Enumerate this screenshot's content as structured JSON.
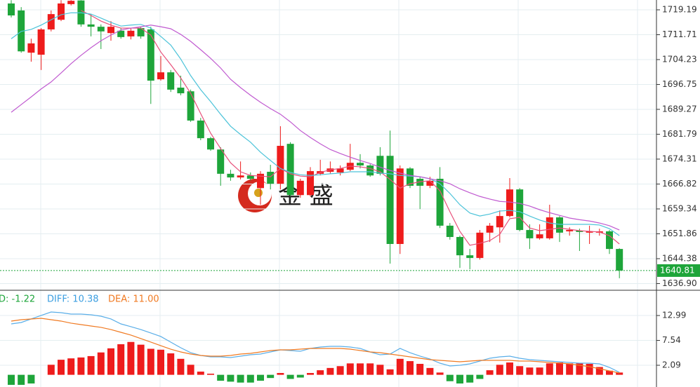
{
  "chart_data": [
    {
      "type": "candlestick",
      "open": [
        1721.1,
        1719.0,
        1706.3,
        1705.7,
        1713.3,
        1716.2,
        1720.9,
        1722.0,
        1714.8,
        1714.1,
        1712.2,
        1712.9,
        1711.2,
        1713.7,
        1713.3,
        1698.3,
        1700.4,
        1695.8,
        1694.7,
        1685.9,
        1680.6,
        1677.2,
        1669.9,
        1668.8,
        1669.4,
        1665.6,
        1670.5,
        1666.9,
        1678.9,
        1663.5,
        1663.5,
        1669.9,
        1670.5,
        1670.3,
        1671.1,
        1673.2,
        1672.4,
        1675.3,
        1675.3,
        1648.8,
        1671.5,
        1668.4,
        1666.3,
        1668.4,
        1654.3,
        1650.9,
        1645.4,
        1644.6,
        1652.2,
        1653.8,
        1657.2,
        1665.2,
        1653.0,
        1650.5,
        1650.5,
        1656.8,
        1652.6,
        1652.8,
        1652.2,
        1652.2,
        1652.6,
        1647.3
      ],
      "high": [
        1722.1,
        1720.0,
        1710.5,
        1713.7,
        1719.0,
        1722.1,
        1722.1,
        1722.1,
        1717.9,
        1714.8,
        1715.8,
        1713.7,
        1713.7,
        1714.1,
        1714.1,
        1705.3,
        1701.1,
        1699.4,
        1695.2,
        1686.7,
        1681.0,
        1677.9,
        1671.1,
        1673.6,
        1670.3,
        1670.7,
        1672.6,
        1684.2,
        1679.4,
        1668.4,
        1671.9,
        1674.1,
        1673.6,
        1672.4,
        1678.9,
        1675.8,
        1672.8,
        1677.9,
        1682.9,
        1672.4,
        1671.9,
        1669.0,
        1669.0,
        1671.9,
        1655.1,
        1651.3,
        1647.3,
        1653.0,
        1655.1,
        1658.9,
        1668.6,
        1665.6,
        1654.7,
        1654.7,
        1660.6,
        1657.2,
        1653.8,
        1653.4,
        1654.3,
        1653.4,
        1653.0,
        1647.5
      ],
      "low": [
        1716.9,
        1706.3,
        1703.6,
        1701.1,
        1712.7,
        1715.8,
        1720.5,
        1714.1,
        1711.2,
        1707.4,
        1709.9,
        1710.5,
        1710.3,
        1710.5,
        1690.9,
        1697.9,
        1694.5,
        1693.5,
        1685.5,
        1680.0,
        1676.8,
        1666.3,
        1667.8,
        1668.2,
        1667.9,
        1660.6,
        1665.2,
        1665.2,
        1663.1,
        1662.7,
        1663.1,
        1669.4,
        1669.9,
        1669.4,
        1670.7,
        1671.5,
        1669.0,
        1669.4,
        1642.9,
        1645.8,
        1665.6,
        1659.3,
        1665.6,
        1653.6,
        1650.1,
        1641.6,
        1641.2,
        1644.1,
        1649.4,
        1649.2,
        1656.8,
        1652.6,
        1647.3,
        1650.1,
        1650.1,
        1649.4,
        1651.3,
        1646.7,
        1648.8,
        1651.3,
        1645.8,
        1638.5
      ],
      "close": [
        1717.5,
        1706.7,
        1709.1,
        1713.3,
        1717.9,
        1721.1,
        1721.9,
        1714.8,
        1714.1,
        1712.7,
        1714.1,
        1711.0,
        1712.9,
        1711.2,
        1697.9,
        1700.4,
        1695.2,
        1694.1,
        1685.9,
        1680.6,
        1677.2,
        1669.9,
        1668.8,
        1669.4,
        1668.4,
        1669.9,
        1666.9,
        1678.3,
        1663.5,
        1667.8,
        1670.7,
        1670.7,
        1671.5,
        1671.5,
        1673.2,
        1672.4,
        1669.4,
        1669.9,
        1648.8,
        1671.5,
        1666.3,
        1666.3,
        1667.8,
        1654.3,
        1650.9,
        1645.4,
        1644.6,
        1652.2,
        1654.3,
        1657.2,
        1665.2,
        1653.0,
        1650.5,
        1651.7,
        1656.8,
        1652.2,
        1653.0,
        1652.4,
        1652.6,
        1652.6,
        1647.3,
        1640.81
      ],
      "up_color": "#ee1c1c",
      "down_color": "#1ea53a",
      "series": [
        {
          "color": "#e8507a",
          "values": [
            null,
            null,
            null,
            null,
            null,
            null,
            null,
            1719.0,
            1717.5,
            1715.8,
            1714.6,
            1713.7,
            1713.7,
            1713.7,
            1711.6,
            1706.5,
            1702.7,
            1698.7,
            1694.1,
            1688.0,
            1682.1,
            1677.5,
            1673.2,
            1670.5,
            1669.4,
            1669.2,
            1669.0,
            1671.5,
            1669.9,
            1669.2,
            1669.0,
            1670.3,
            1671.1,
            1671.5,
            1672.2,
            1672.0,
            1671.5,
            1670.5,
            1668.2,
            1665.6,
            1666.9,
            1667.5,
            1667.8,
            1664.8,
            1658.5,
            1652.6,
            1648.4,
            1649.0,
            1649.8,
            1651.7,
            1656.4,
            1656.8,
            1653.6,
            1652.8,
            1653.2,
            1653.6,
            1653.2,
            1652.8,
            1652.6,
            1652.4,
            1651.3,
            1648.8
          ]
        },
        {
          "color": "#4cc3d9",
          "values": [
            1710.5,
            1712.7,
            1713.3,
            1714.6,
            1716.2,
            1717.7,
            1718.3,
            1718.3,
            1717.9,
            1716.7,
            1715.4,
            1714.3,
            1714.6,
            1714.8,
            1713.7,
            1711.2,
            1708.6,
            1704.4,
            1699.4,
            1695.2,
            1691.6,
            1687.8,
            1684.2,
            1681.7,
            1679.4,
            1676.4,
            1673.9,
            1671.5,
            1670.3,
            1669.6,
            1669.4,
            1669.6,
            1669.9,
            1670.1,
            1670.5,
            1670.5,
            1670.5,
            1670.1,
            1669.9,
            1669.4,
            1669.2,
            1669.0,
            1668.4,
            1666.9,
            1664.0,
            1660.6,
            1658.1,
            1657.2,
            1657.8,
            1658.7,
            1658.9,
            1658.5,
            1657.2,
            1656.0,
            1655.1,
            1654.7,
            1654.7,
            1654.7,
            1654.7,
            1654.5,
            1653.4,
            1651.3
          ]
        },
        {
          "color": "#c05ad0",
          "values": [
            1688.4,
            1690.7,
            1693.0,
            1695.4,
            1697.5,
            1700.2,
            1703.0,
            1705.5,
            1707.8,
            1709.9,
            1711.6,
            1713.1,
            1713.7,
            1714.1,
            1714.6,
            1714.1,
            1713.5,
            1711.8,
            1709.7,
            1707.2,
            1704.6,
            1701.7,
            1698.3,
            1695.8,
            1693.5,
            1691.4,
            1689.5,
            1687.8,
            1685.5,
            1682.9,
            1680.8,
            1678.9,
            1677.2,
            1676.0,
            1674.9,
            1673.9,
            1673.0,
            1671.9,
            1670.9,
            1670.1,
            1669.4,
            1669.0,
            1668.4,
            1667.8,
            1666.9,
            1665.4,
            1664.2,
            1663.1,
            1662.3,
            1661.6,
            1661.4,
            1661.0,
            1660.2,
            1659.1,
            1658.2,
            1657.4,
            1656.6,
            1656.1,
            1655.7,
            1655.1,
            1654.3,
            1653.0
          ]
        }
      ],
      "ylim": [
        1635.1,
        1722.14
      ],
      "yticks": [
        1719.19,
        1711.71,
        1704.23,
        1696.75,
        1689.27,
        1681.79,
        1674.31,
        1666.82,
        1659.34,
        1651.86,
        1644.38,
        {
          "value": 1636.9,
          "label": "1636.90"
        }
      ],
      "grid": true,
      "last_price": 1640.81,
      "last_price_color": "#1ea53a",
      "watermark": "金 盛"
    },
    {
      "type": "macd",
      "legend": [
        {
          "text": "D: -1.22",
          "color": "#1ea53a"
        },
        {
          "text": "DIFF: 10.38",
          "color": "#3b9ee0"
        },
        {
          "text": "DEA: 11.00",
          "color": "#f07a22"
        }
      ],
      "histogram": [
        -2.2,
        -2.2,
        -1.9,
        0,
        2.2,
        3.3,
        3.6,
        3.8,
        4.1,
        4.9,
        5.8,
        6.7,
        7.2,
        6.6,
        5.7,
        5.5,
        4.7,
        3.5,
        2.2,
        0.7,
        0.25,
        -1.3,
        -1.5,
        -1.7,
        -1.7,
        -1.3,
        -0.7,
        0.4,
        -0.9,
        -0.6,
        0.4,
        1.0,
        1.5,
        1.9,
        2.5,
        2.5,
        2.5,
        2.2,
        1.2,
        3.5,
        3.0,
        2.4,
        1.5,
        0.5,
        -1.4,
        -1.9,
        -1.7,
        -0.9,
        1.0,
        2.2,
        2.7,
        1.9,
        1.6,
        1.6,
        2.5,
        2.7,
        2.5,
        2.5,
        2.4,
        1.7,
        0.9,
        0.5
      ],
      "up_color": "#ee1c1c",
      "down_color": "#1ea53a",
      "series": [
        {
          "color": "#5aaee8",
          "values": [
            11.15,
            11.46,
            12.23,
            13.0,
            13.76,
            13.61,
            13.3,
            13.3,
            13.15,
            12.84,
            12.23,
            11.15,
            10.54,
            9.92,
            9.16,
            8.39,
            7.16,
            5.93,
            4.85,
            4.24,
            3.93,
            3.93,
            3.78,
            4.09,
            4.39,
            4.55,
            5.01,
            5.47,
            5.32,
            5.16,
            5.78,
            6.08,
            6.24,
            6.24,
            6.08,
            5.78,
            5.01,
            4.39,
            4.55,
            5.78,
            4.85,
            4.09,
            3.47,
            2.55,
            1.94,
            2.09,
            2.4,
            3.01,
            3.63,
            3.93,
            4.09,
            3.63,
            3.32,
            3.17,
            3.01,
            2.86,
            2.7,
            2.55,
            2.55,
            2.4,
            1.63,
            0.55
          ]
        },
        {
          "color": "#f07a22",
          "values": [
            11.77,
            12.07,
            12.23,
            12.38,
            12.07,
            11.77,
            11.31,
            11.0,
            10.69,
            10.39,
            9.92,
            9.31,
            8.7,
            7.93,
            7.16,
            6.39,
            5.62,
            5.01,
            4.55,
            4.24,
            4.09,
            4.09,
            4.24,
            4.55,
            4.7,
            5.01,
            5.32,
            5.47,
            5.47,
            5.62,
            5.78,
            5.78,
            5.78,
            5.78,
            5.62,
            5.32,
            5.01,
            4.85,
            4.55,
            4.24,
            3.93,
            3.63,
            3.32,
            3.17,
            3.01,
            2.86,
            3.01,
            3.17,
            3.17,
            3.17,
            3.17,
            3.01,
            3.01,
            2.86,
            2.7,
            2.55,
            2.4,
            2.09,
            1.78,
            1.32,
            0.86,
            0.4
          ]
        }
      ],
      "ylim": [
        -2.67,
        18.37
      ],
      "yticks": [
        12.99,
        7.54,
        2.09
      ],
      "grid": true
    }
  ]
}
